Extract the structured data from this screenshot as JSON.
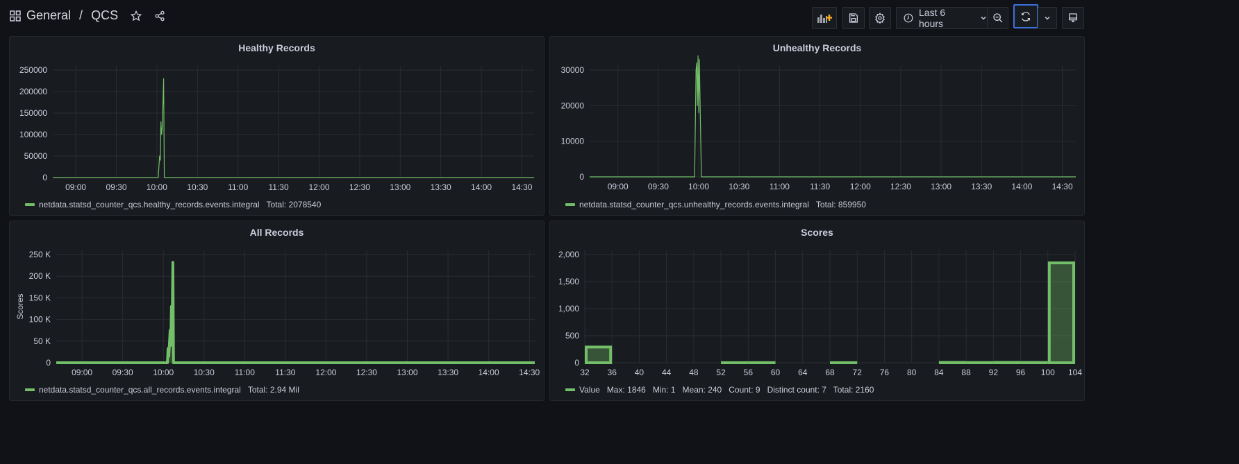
{
  "header": {
    "folder": "General",
    "separator": "/",
    "dashboard": "QCS",
    "time_range": "Last 6 hours"
  },
  "icons": {
    "dashboards": "grid-icon",
    "star": "star-icon",
    "share": "share-icon",
    "add_panel": "add-panel-icon",
    "save": "save-icon",
    "settings": "gear-icon",
    "clock": "clock-icon",
    "zoom_out": "zoom-out-icon",
    "refresh": "refresh-icon",
    "tv": "tv-mode-icon"
  },
  "colors": {
    "series": "#73bf69",
    "accent": "#3d71d9",
    "background": "#111217",
    "panel": "#181b1f"
  },
  "panels": [
    {
      "title": "Healthy Records",
      "legend": "netdata.statsd_counter_qcs.healthy_records.events.integral",
      "legend_stat": "Total: 2078540"
    },
    {
      "title": "Unhealthy Records",
      "legend": "netdata.statsd_counter_qcs.unhealthy_records.events.integral",
      "legend_stat": "Total: 859950"
    },
    {
      "title": "All Records",
      "legend": "netdata.statsd_counter_qcs.all_records.events.integral",
      "legend_stat": "Total: 2.94 Mil"
    },
    {
      "title": "Scores",
      "legend": "Value",
      "legend_stat": "Max: 1846   Min: 1   Mean: 240   Count: 9   Distinct count: 7   Total: 2160"
    }
  ],
  "chart_data": [
    {
      "type": "line",
      "title": "Healthy Records",
      "xlim": [
        "08:43",
        "14:39"
      ],
      "ylim": [
        0,
        250000
      ],
      "yticks": [
        0,
        50000,
        100000,
        150000,
        200000,
        250000
      ],
      "ytick_labels": [
        "0",
        "50000",
        "100000",
        "150000",
        "200000",
        "250000"
      ],
      "xtick_labels": [
        "09:00",
        "09:30",
        "10:00",
        "10:30",
        "11:00",
        "11:30",
        "12:00",
        "12:30",
        "13:00",
        "13:30",
        "14:00",
        "14:30"
      ],
      "grid": true,
      "points": [
        [
          "08:43",
          0
        ],
        [
          "10:01",
          0
        ],
        [
          "10:02",
          50000
        ],
        [
          "10:02:30",
          40000
        ],
        [
          "10:03",
          130000
        ],
        [
          "10:03:30",
          100000
        ],
        [
          "10:04",
          120000
        ],
        [
          "10:05",
          230000
        ],
        [
          "10:05:30",
          0
        ],
        [
          "14:39",
          0
        ]
      ]
    },
    {
      "type": "line",
      "title": "Unhealthy Records",
      "xlim": [
        "08:39",
        "14:40"
      ],
      "ylim": [
        0,
        30000
      ],
      "yticks": [
        0,
        10000,
        20000,
        30000
      ],
      "ytick_labels": [
        "0",
        "10000",
        "20000",
        "30000"
      ],
      "xtick_labels": [
        "09:00",
        "09:30",
        "10:00",
        "10:30",
        "11:00",
        "11:30",
        "12:00",
        "12:30",
        "13:00",
        "13:30",
        "14:00",
        "14:30"
      ],
      "grid": true,
      "points": [
        [
          "08:39",
          0
        ],
        [
          "09:57",
          0
        ],
        [
          "09:58",
          30000
        ],
        [
          "09:58:30",
          32000
        ],
        [
          "09:59",
          20000
        ],
        [
          "09:59:30",
          34000
        ],
        [
          "10:00",
          18000
        ],
        [
          "10:00:30",
          33000
        ],
        [
          "10:01:30",
          10000
        ],
        [
          "10:02",
          0
        ],
        [
          "14:40",
          0
        ]
      ]
    },
    {
      "type": "area",
      "title": "All Records",
      "ylabel": "Scores",
      "xlim": [
        "08:41",
        "14:34"
      ],
      "ylim": [
        0,
        250000
      ],
      "yticks": [
        0,
        50000,
        100000,
        150000,
        200000,
        250000
      ],
      "ytick_labels": [
        "0",
        "50 K",
        "100 K",
        "150 K",
        "200 K",
        "250 K"
      ],
      "xtick_labels": [
        "09:00",
        "09:30",
        "10:00",
        "10:30",
        "11:00",
        "11:30",
        "12:00",
        "12:30",
        "13:00",
        "13:30",
        "14:00",
        "14:30"
      ],
      "grid": true,
      "points": [
        [
          "08:41",
          0
        ],
        [
          "10:03",
          0
        ],
        [
          "10:03:30",
          33000
        ],
        [
          "10:04",
          15000
        ],
        [
          "10:05",
          75000
        ],
        [
          "10:05:30",
          40000
        ],
        [
          "10:06",
          130000
        ],
        [
          "10:06:30",
          80000
        ],
        [
          "10:07",
          232000
        ],
        [
          "10:07:30",
          0
        ],
        [
          "14:34",
          0
        ]
      ]
    },
    {
      "type": "histogram",
      "title": "Scores",
      "xlim": [
        32,
        104
      ],
      "ylim": [
        0,
        2000
      ],
      "yticks": [
        0,
        500,
        1000,
        1500,
        2000
      ],
      "ytick_labels": [
        "0",
        "500",
        "1,000",
        "1,500",
        "2,000"
      ],
      "xticks": [
        32,
        36,
        40,
        44,
        48,
        52,
        56,
        60,
        64,
        68,
        72,
        76,
        80,
        84,
        88,
        92,
        96,
        100,
        104
      ],
      "grid": true,
      "bins": [
        [
          32,
          36,
          290
        ],
        [
          52,
          56,
          1
        ],
        [
          56,
          60,
          2
        ],
        [
          68,
          72,
          1
        ],
        [
          84,
          88,
          6
        ],
        [
          88,
          92,
          3
        ],
        [
          92,
          96,
          6
        ],
        [
          96,
          100,
          5
        ],
        [
          100,
          104,
          1846
        ]
      ]
    }
  ]
}
